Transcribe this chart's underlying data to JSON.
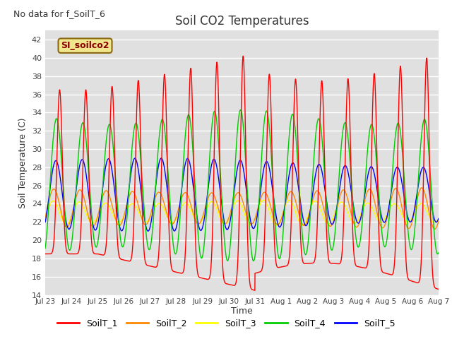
{
  "title": "Soil CO2 Temperatures",
  "ylabel": "Soil Temperature (C)",
  "xlabel": "Time",
  "annotation_text": "No data for f_SoilT_6",
  "legend_label": "SI_soilco2",
  "ylim": [
    14,
    43
  ],
  "series_colors": {
    "SoilT_1": "#ff0000",
    "SoilT_2": "#ff8800",
    "SoilT_3": "#ffff00",
    "SoilT_4": "#00cc00",
    "SoilT_5": "#0000ff"
  },
  "x_tick_labels": [
    "Jul 23",
    "Jul 24",
    "Jul 25",
    "Jul 26",
    "Jul 27",
    "Jul 28",
    "Jul 29",
    "Jul 30",
    "Jul 31",
    "Aug 1",
    "Aug 2",
    "Aug 3",
    "Aug 4",
    "Aug 5",
    "Aug 6",
    "Aug 7"
  ],
  "bg_color": "#e0e0e0",
  "legend_box_color": "#f0e68c",
  "legend_box_edge": "#8b6914"
}
